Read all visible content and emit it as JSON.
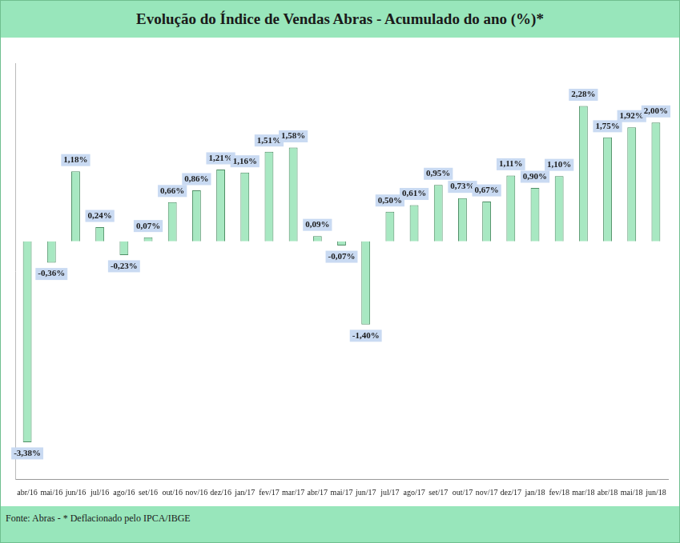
{
  "chart_data": {
    "type": "bar",
    "title": "Evolução do Índice de Vendas Abras - Acumulado do ano (%)*",
    "source": "Fonte: Abras - * Deflacionado pelo IPCA/IBGE",
    "categories": [
      "abr/16",
      "mai/16",
      "jun/16",
      "jul/16",
      "ago/16",
      "set/16",
      "out/16",
      "nov/16",
      "dez/16",
      "jan/17",
      "fev/17",
      "mar/17",
      "abr/17",
      "mai/17",
      "jun/17",
      "jul/17",
      "ago/17",
      "set/17",
      "out/17",
      "nov/17",
      "dez/17",
      "jan/18",
      "fev/18",
      "mar/18",
      "abr/18",
      "mai/18",
      "jun/18"
    ],
    "values": [
      -3.38,
      -0.36,
      1.18,
      0.24,
      -0.23,
      0.07,
      0.66,
      0.86,
      1.21,
      1.16,
      1.51,
      1.58,
      0.09,
      -0.07,
      -1.4,
      0.5,
      0.61,
      0.95,
      0.73,
      0.67,
      1.11,
      0.9,
      1.1,
      2.28,
      1.75,
      1.92,
      2.0
    ],
    "value_labels": [
      "-3,38%",
      "-0,36%",
      "1,18%",
      "0,24%",
      "-0,23%",
      "0,07%",
      "0,66%",
      "0,86%",
      "1,21%",
      "1,16%",
      "1,51%",
      "1,58%",
      "0,09%",
      "-0,07%",
      "-1,40%",
      "0,50%",
      "0,61%",
      "0,95%",
      "0,73%",
      "0,67%",
      "1,11%",
      "0,90%",
      "1,10%",
      "2,28%",
      "1,75%",
      "1,92%",
      "2,00%"
    ],
    "color": "#a8e8c2",
    "ylim": [
      -4,
      3
    ],
    "data_labels": true,
    "tick_labels": "x",
    "grid": false
  }
}
